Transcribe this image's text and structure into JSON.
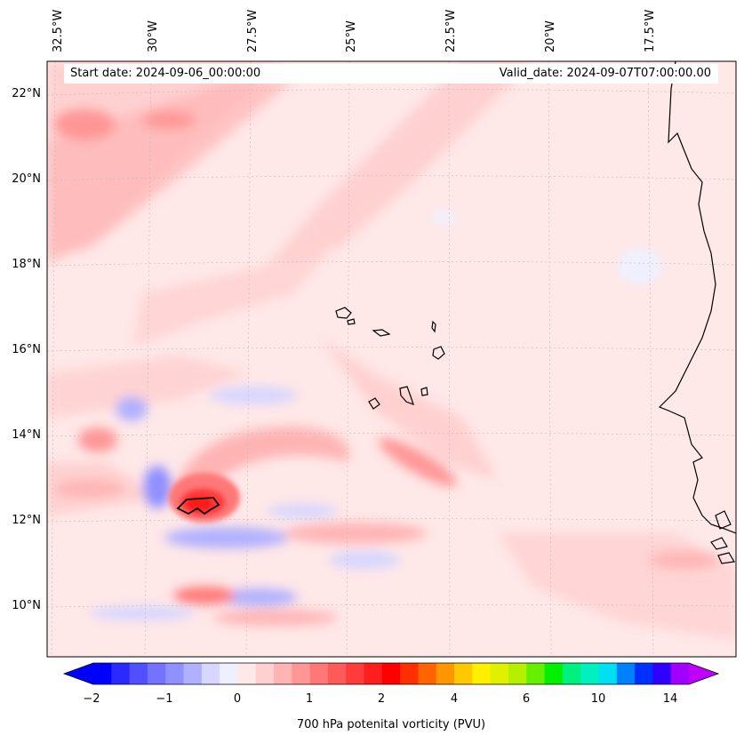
{
  "header": {
    "start_date": "Start date: 2024-09-06_00:00:00",
    "valid_date": "Valid_date: 2024-09-07T07:00:00.00"
  },
  "axes": {
    "longitudes": [
      "32.5°W",
      "30°W",
      "27.5°W",
      "25°W",
      "22.5°W",
      "20°W",
      "17.5°W"
    ],
    "latitudes": [
      "22°N",
      "20°N",
      "18°N",
      "16°N",
      "14°N",
      "12°N",
      "10°N"
    ]
  },
  "colorbar": {
    "label": "700 hPa potenital vorticity (PVU)",
    "ticks": [
      "−2",
      "−1",
      "0",
      "1",
      "2",
      "4",
      "6",
      "10",
      "14"
    ],
    "colors": [
      "#0000ff",
      "#2a2aff",
      "#5050ff",
      "#7373ff",
      "#9090ff",
      "#b0b0ff",
      "#d6d6ff",
      "#eef0ff",
      "#ffe8e8",
      "#ffd0d0",
      "#ffb4b4",
      "#ff9696",
      "#ff7878",
      "#ff5a5a",
      "#ff3c3c",
      "#ff1e1e",
      "#ff0000",
      "#ff3000",
      "#ff6400",
      "#ff9600",
      "#ffc800",
      "#fff000",
      "#e0f000",
      "#b4f000",
      "#64f000",
      "#00f000",
      "#00f080",
      "#00f0c0",
      "#00e0f0",
      "#0080ff",
      "#0030ff",
      "#3000ff",
      "#a000ff"
    ],
    "extend_low_color": "#0000ff",
    "extend_high_color": "#c000ff"
  },
  "chart_data": {
    "type": "heatmap",
    "variable": "700 hPa potenital vorticity (PVU)",
    "lon_range": [
      -33,
      -15.5
    ],
    "lat_range": [
      9,
      22.8
    ],
    "features": [
      {
        "kind": "max",
        "lon": -29.3,
        "lat": 12.4,
        "value": 2.0
      },
      {
        "kind": "min",
        "lon": -30.5,
        "lat": 12.8,
        "value": -0.6
      },
      {
        "kind": "min",
        "lon": -27.0,
        "lat": 11.5,
        "value": -0.5
      },
      {
        "kind": "max",
        "lon": -29.0,
        "lat": 10.3,
        "value": 1.2
      },
      {
        "kind": "max",
        "lon": -23.5,
        "lat": 13.3,
        "value": 1.0
      }
    ]
  }
}
